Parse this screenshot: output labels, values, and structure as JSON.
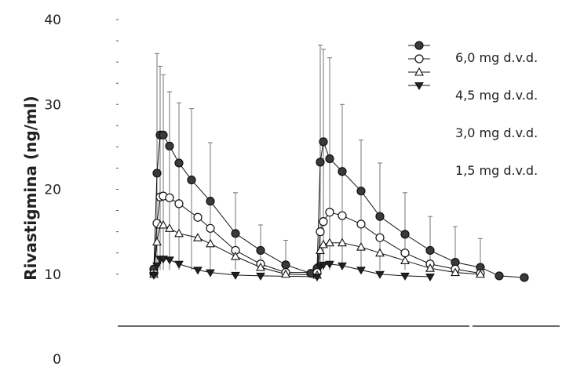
{
  "chart_data": {
    "type": "line",
    "title": "",
    "xlabel": "",
    "ylabel": "Rivastigmina (ng/ml)",
    "ylim": [
      0,
      40
    ],
    "yticks": [
      0,
      10,
      20,
      30,
      40
    ],
    "ytick_labels": [
      "0",
      "10",
      "20",
      "30",
      "40"
    ],
    "x_ticks_shown": false,
    "grid": false,
    "legend": "top-right",
    "series": [
      {
        "name": "6,0 mg d.v.d.",
        "marker": "filled-circle",
        "points": [
          [
            3.0,
            10.6
          ],
          [
            3.25,
            21.9
          ],
          [
            3.5,
            26.4
          ],
          [
            3.75,
            26.4
          ],
          [
            4.25,
            25.1
          ],
          [
            5.0,
            23.1
          ],
          [
            6.0,
            21.1
          ],
          [
            7.5,
            18.6
          ],
          [
            9.5,
            14.8
          ],
          [
            11.5,
            12.8
          ],
          [
            13.5,
            11.1
          ],
          [
            15.5,
            10.1
          ],
          [
            16.0,
            10.7
          ],
          [
            16.25,
            23.2
          ],
          [
            16.5,
            25.6
          ],
          [
            17.0,
            23.6
          ],
          [
            18.0,
            22.1
          ],
          [
            19.5,
            19.8
          ],
          [
            21.0,
            16.8
          ],
          [
            23.0,
            14.7
          ],
          [
            25.0,
            12.8
          ],
          [
            27.0,
            11.4
          ],
          [
            29.0,
            10.8
          ],
          [
            30.5,
            9.8
          ],
          [
            32.5,
            9.6
          ]
        ]
      },
      {
        "name": "4,5 mg d.v.d.",
        "marker": "open-circle",
        "points": [
          [
            3.0,
            10.1
          ],
          [
            3.25,
            16.0
          ],
          [
            3.5,
            19.1
          ],
          [
            3.75,
            19.2
          ],
          [
            4.25,
            19.0
          ],
          [
            5.0,
            18.3
          ],
          [
            6.5,
            16.7
          ],
          [
            7.5,
            15.4
          ],
          [
            9.5,
            12.8
          ],
          [
            11.5,
            11.2
          ],
          [
            13.5,
            10.2
          ],
          [
            16.0,
            10.2
          ],
          [
            16.25,
            15.0
          ],
          [
            16.5,
            16.2
          ],
          [
            17.0,
            17.3
          ],
          [
            18.0,
            16.9
          ],
          [
            19.5,
            15.9
          ],
          [
            21.0,
            14.3
          ],
          [
            23.0,
            12.5
          ],
          [
            25.0,
            11.2
          ],
          [
            27.0,
            10.6
          ],
          [
            29.0,
            10.1
          ]
        ]
      },
      {
        "name": "3,0 mg d.v.d.",
        "marker": "open-triangle",
        "points": [
          [
            3.0,
            10.0
          ],
          [
            3.25,
            13.8
          ],
          [
            3.5,
            15.8
          ],
          [
            3.75,
            15.8
          ],
          [
            4.25,
            15.4
          ],
          [
            5.0,
            14.8
          ],
          [
            6.5,
            14.3
          ],
          [
            7.5,
            13.6
          ],
          [
            9.5,
            12.1
          ],
          [
            11.5,
            10.8
          ],
          [
            13.5,
            10.0
          ],
          [
            16.0,
            9.9
          ],
          [
            16.25,
            12.8
          ],
          [
            16.5,
            13.5
          ],
          [
            17.0,
            13.7
          ],
          [
            18.0,
            13.7
          ],
          [
            19.5,
            13.2
          ],
          [
            21.0,
            12.5
          ],
          [
            23.0,
            11.6
          ],
          [
            25.0,
            10.7
          ],
          [
            27.0,
            10.2
          ],
          [
            29.0,
            10.0
          ]
        ]
      },
      {
        "name": "1,5 mg d.v.d.",
        "marker": "filled-down-triangle",
        "points": [
          [
            3.0,
            9.9
          ],
          [
            3.25,
            11.0
          ],
          [
            3.5,
            11.8
          ],
          [
            3.75,
            11.8
          ],
          [
            4.25,
            11.7
          ],
          [
            5.0,
            11.2
          ],
          [
            6.5,
            10.5
          ],
          [
            7.5,
            10.2
          ],
          [
            9.5,
            9.9
          ],
          [
            11.5,
            9.8
          ],
          [
            16.0,
            9.7
          ],
          [
            16.25,
            10.9
          ],
          [
            16.5,
            11.1
          ],
          [
            17.0,
            11.2
          ],
          [
            18.0,
            11.0
          ],
          [
            19.5,
            10.5
          ],
          [
            21.0,
            10.0
          ],
          [
            23.0,
            9.8
          ],
          [
            25.0,
            9.7
          ]
        ]
      }
    ],
    "error_bars": [
      {
        "x": 3.25,
        "top": 36.0
      },
      {
        "x": 3.5,
        "top": 34.5
      },
      {
        "x": 3.75,
        "top": 33.5
      },
      {
        "x": 4.25,
        "top": 31.5
      },
      {
        "x": 5.0,
        "top": 30.2
      },
      {
        "x": 6.0,
        "top": 29.5
      },
      {
        "x": 7.5,
        "top": 25.5
      },
      {
        "x": 9.5,
        "top": 19.6
      },
      {
        "x": 11.5,
        "top": 15.8
      },
      {
        "x": 13.5,
        "top": 14.0
      },
      {
        "x": 16.25,
        "top": 37.0
      },
      {
        "x": 16.5,
        "top": 36.5
      },
      {
        "x": 17.0,
        "top": 35.5
      },
      {
        "x": 18.0,
        "top": 30.0
      },
      {
        "x": 19.5,
        "top": 25.8
      },
      {
        "x": 21.0,
        "top": 23.1
      },
      {
        "x": 23.0,
        "top": 19.6
      },
      {
        "x": 25.0,
        "top": 16.8
      },
      {
        "x": 27.0,
        "top": 15.6
      },
      {
        "x": 29.0,
        "top": 14.2
      }
    ],
    "colors": {
      "axis": "#111111",
      "series": "#111111",
      "error_bar": "#666666"
    }
  }
}
